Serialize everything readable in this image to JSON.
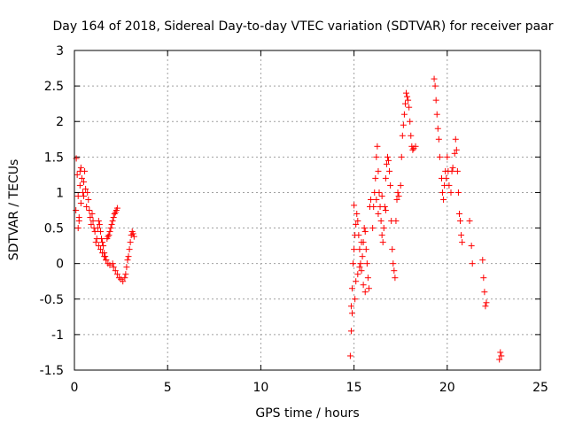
{
  "chart_data": {
    "type": "scatter",
    "title": "Day 164 of 2018, Sidereal Day-to-day VTEC variation (SDTVAR) for receiver paar",
    "xlabel": "GPS time / hours",
    "ylabel": "SDTVAR / TECUs",
    "xlim": [
      0,
      25
    ],
    "ylim": [
      -1.5,
      3
    ],
    "xticks": [
      0,
      5,
      10,
      15,
      20,
      25
    ],
    "xtick_labels": [
      "0",
      "5",
      "10",
      "15",
      "20",
      "25"
    ],
    "yticks": [
      -1.5,
      -1,
      -0.5,
      0,
      0.5,
      1,
      1.5,
      2,
      2.5,
      3
    ],
    "ytick_labels": [
      "-1.5",
      "-1",
      "-0.5",
      "0",
      "0.5",
      "1",
      "1.5",
      "2",
      "2.5",
      "3"
    ],
    "grid": true,
    "marker": "+",
    "marker_color": "#ff0000",
    "series": [
      {
        "name": "SDTVAR",
        "points": [
          [
            0.08,
            0.75
          ],
          [
            0.1,
            1.48
          ],
          [
            0.15,
            1.25
          ],
          [
            0.2,
            0.95
          ],
          [
            0.25,
            0.65
          ],
          [
            0.3,
            1.1
          ],
          [
            0.35,
            0.85
          ],
          [
            0.4,
            1.2
          ],
          [
            0.45,
            1.0
          ],
          [
            0.5,
            1.15
          ],
          [
            0.55,
            1.3
          ],
          [
            0.6,
            1.05
          ],
          [
            0.65,
            0.8
          ],
          [
            0.7,
            1.0
          ],
          [
            0.75,
            0.9
          ],
          [
            0.8,
            0.75
          ],
          [
            0.85,
            0.65
          ],
          [
            0.9,
            0.55
          ],
          [
            0.95,
            0.7
          ],
          [
            1.0,
            0.6
          ],
          [
            1.05,
            0.5
          ],
          [
            1.1,
            0.45
          ],
          [
            1.15,
            0.3
          ],
          [
            1.2,
            0.35
          ],
          [
            1.25,
            0.5
          ],
          [
            1.3,
            0.6
          ],
          [
            1.35,
            0.55
          ],
          [
            1.4,
            0.45
          ],
          [
            1.45,
            0.35
          ],
          [
            1.5,
            0.3
          ],
          [
            1.55,
            0.25
          ],
          [
            1.6,
            0.15
          ],
          [
            1.65,
            0.1
          ],
          [
            1.7,
            0.05
          ],
          [
            1.75,
            0.35
          ],
          [
            1.8,
            0.38
          ],
          [
            1.85,
            0.4
          ],
          [
            1.9,
            0.45
          ],
          [
            1.95,
            0.5
          ],
          [
            2.0,
            0.55
          ],
          [
            2.05,
            0.6
          ],
          [
            2.1,
            0.65
          ],
          [
            2.15,
            0.7
          ],
          [
            2.2,
            0.72
          ],
          [
            2.25,
            0.75
          ],
          [
            2.3,
            0.78
          ],
          [
            2.05,
            0.0
          ],
          [
            2.1,
            -0.05
          ],
          [
            2.2,
            -0.1
          ],
          [
            2.3,
            -0.15
          ],
          [
            2.4,
            -0.2
          ],
          [
            2.5,
            -0.22
          ],
          [
            2.6,
            -0.25
          ],
          [
            2.7,
            -0.2
          ],
          [
            2.75,
            -0.15
          ],
          [
            2.8,
            -0.05
          ],
          [
            2.85,
            0.05
          ],
          [
            2.9,
            0.1
          ],
          [
            2.95,
            0.2
          ],
          [
            3.0,
            0.3
          ],
          [
            3.05,
            0.4
          ],
          [
            3.1,
            0.45
          ],
          [
            3.15,
            0.42
          ],
          [
            3.2,
            0.38
          ],
          [
            1.3,
            0.25
          ],
          [
            1.4,
            0.2
          ],
          [
            1.5,
            0.15
          ],
          [
            1.6,
            0.1
          ],
          [
            1.7,
            0.05
          ],
          [
            1.8,
            0.0
          ],
          [
            1.9,
            -0.02
          ],
          [
            0.2,
            0.5
          ],
          [
            0.25,
            0.6
          ],
          [
            0.3,
            1.3
          ],
          [
            0.35,
            1.35
          ],
          [
            0.5,
            0.95
          ],
          [
            14.8,
            -1.3
          ],
          [
            14.85,
            -0.95
          ],
          [
            14.9,
            -0.7
          ],
          [
            14.85,
            -0.6
          ],
          [
            14.9,
            -0.35
          ],
          [
            14.95,
            0.0
          ],
          [
            15.0,
            0.2
          ],
          [
            15.05,
            0.4
          ],
          [
            15.1,
            0.55
          ],
          [
            15.15,
            0.7
          ],
          [
            15.2,
            0.6
          ],
          [
            15.25,
            0.4
          ],
          [
            15.3,
            0.2
          ],
          [
            15.35,
            0.0
          ],
          [
            15.4,
            -0.1
          ],
          [
            15.45,
            0.1
          ],
          [
            15.5,
            0.3
          ],
          [
            15.55,
            0.5
          ],
          [
            15.6,
            0.45
          ],
          [
            15.65,
            0.2
          ],
          [
            15.7,
            0.0
          ],
          [
            15.75,
            -0.2
          ],
          [
            15.8,
            -0.35
          ],
          [
            15.85,
            0.8
          ],
          [
            15.9,
            0.9
          ],
          [
            15.0,
            0.82
          ],
          [
            15.05,
            -0.5
          ],
          [
            15.1,
            -0.25
          ],
          [
            15.2,
            -0.15
          ],
          [
            15.3,
            -0.05
          ],
          [
            15.4,
            0.3
          ],
          [
            15.5,
            -0.3
          ],
          [
            15.6,
            -0.4
          ],
          [
            16.0,
            0.5
          ],
          [
            16.05,
            0.8
          ],
          [
            16.1,
            1.0
          ],
          [
            16.15,
            1.2
          ],
          [
            16.2,
            1.5
          ],
          [
            16.25,
            1.65
          ],
          [
            16.3,
            1.3
          ],
          [
            16.35,
            1.0
          ],
          [
            16.4,
            0.8
          ],
          [
            16.45,
            0.6
          ],
          [
            16.5,
            0.4
          ],
          [
            16.55,
            0.3
          ],
          [
            16.6,
            0.5
          ],
          [
            16.65,
            0.8
          ],
          [
            16.7,
            1.2
          ],
          [
            16.75,
            1.4
          ],
          [
            16.8,
            1.5
          ],
          [
            16.85,
            1.45
          ],
          [
            16.9,
            1.3
          ],
          [
            16.95,
            1.1
          ],
          [
            17.0,
            0.6
          ],
          [
            17.05,
            0.2
          ],
          [
            17.1,
            0.0
          ],
          [
            17.15,
            -0.1
          ],
          [
            17.2,
            -0.2
          ],
          [
            17.25,
            0.6
          ],
          [
            17.3,
            0.9
          ],
          [
            17.35,
            1.0
          ],
          [
            17.4,
            0.95
          ],
          [
            17.5,
            1.1
          ],
          [
            17.55,
            1.5
          ],
          [
            17.6,
            1.8
          ],
          [
            17.65,
            1.95
          ],
          [
            17.7,
            2.1
          ],
          [
            17.75,
            2.25
          ],
          [
            17.8,
            2.4
          ],
          [
            17.85,
            2.35
          ],
          [
            17.9,
            2.3
          ],
          [
            17.95,
            2.2
          ],
          [
            18.0,
            2.0
          ],
          [
            18.05,
            1.8
          ],
          [
            18.1,
            1.65
          ],
          [
            18.15,
            1.6
          ],
          [
            18.2,
            1.62
          ],
          [
            18.3,
            1.65
          ],
          [
            16.2,
            0.9
          ],
          [
            16.3,
            0.7
          ],
          [
            16.5,
            0.95
          ],
          [
            16.7,
            0.75
          ],
          [
            19.3,
            2.6
          ],
          [
            19.35,
            2.5
          ],
          [
            19.4,
            2.3
          ],
          [
            19.45,
            2.1
          ],
          [
            19.5,
            1.9
          ],
          [
            19.55,
            1.75
          ],
          [
            19.6,
            1.5
          ],
          [
            19.7,
            1.2
          ],
          [
            19.75,
            1.0
          ],
          [
            19.8,
            0.9
          ],
          [
            19.85,
            1.1
          ],
          [
            19.9,
            1.3
          ],
          [
            19.95,
            1.2
          ],
          [
            20.0,
            1.5
          ],
          [
            20.05,
            1.3
          ],
          [
            20.1,
            1.1
          ],
          [
            20.2,
            1.0
          ],
          [
            20.25,
            1.3
          ],
          [
            20.3,
            1.35
          ],
          [
            20.4,
            1.55
          ],
          [
            20.45,
            1.75
          ],
          [
            20.5,
            1.6
          ],
          [
            20.55,
            1.3
          ],
          [
            20.6,
            1.0
          ],
          [
            20.65,
            0.7
          ],
          [
            20.7,
            0.6
          ],
          [
            20.75,
            0.4
          ],
          [
            20.8,
            0.3
          ],
          [
            21.2,
            0.6
          ],
          [
            21.3,
            0.25
          ],
          [
            21.35,
            0.0
          ],
          [
            21.9,
            0.05
          ],
          [
            21.95,
            -0.2
          ],
          [
            22.0,
            -0.4
          ],
          [
            22.05,
            -0.6
          ],
          [
            22.1,
            -0.55
          ],
          [
            22.8,
            -1.35
          ],
          [
            22.85,
            -1.25
          ],
          [
            22.9,
            -1.3
          ]
        ]
      }
    ]
  }
}
